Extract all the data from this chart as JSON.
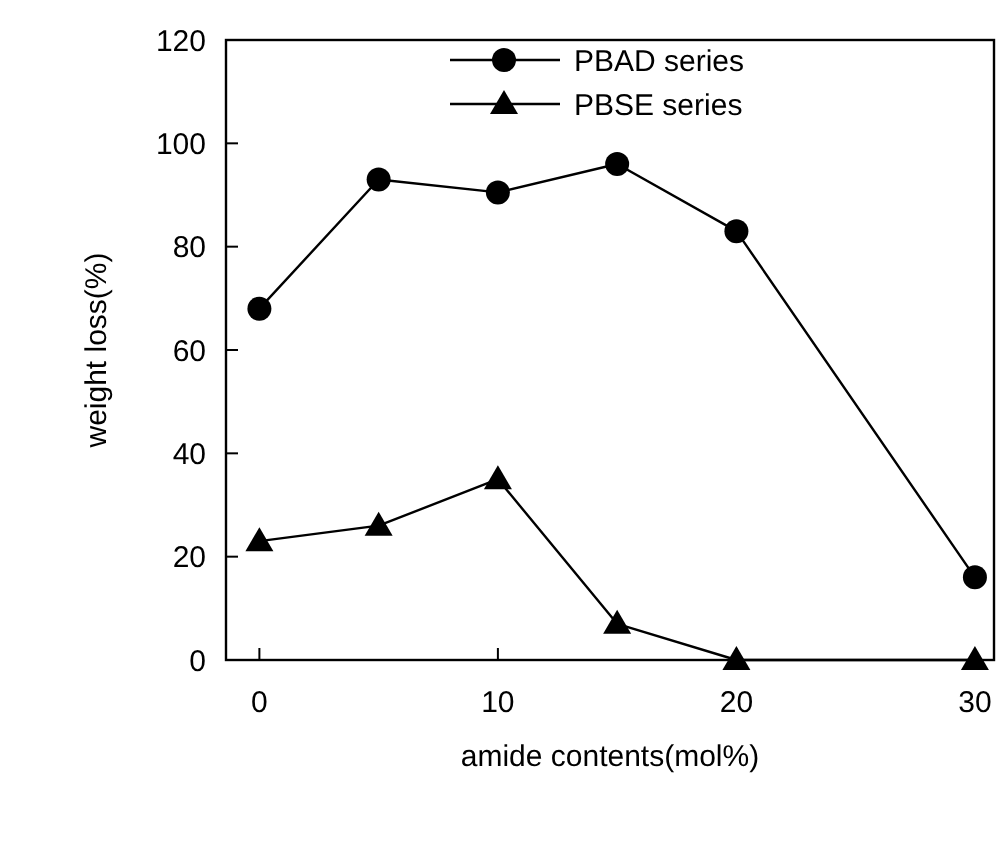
{
  "chart_data": {
    "type": "line",
    "xlabel": "amide contents(mol%)",
    "ylabel": "weight loss(%)",
    "x": [
      0,
      5,
      10,
      15,
      20,
      30
    ],
    "series": [
      {
        "name": "PBAD series",
        "color": "#000000",
        "marker": "circle",
        "values": [
          68,
          93,
          90.5,
          96,
          83,
          16
        ]
      },
      {
        "name": "PBSE series",
        "color": "#000000",
        "marker": "triangle",
        "values": [
          23,
          26,
          35,
          7,
          0,
          0
        ]
      }
    ],
    "xlim": [
      -1.4,
      30.8
    ],
    "xticks": [
      0,
      10,
      20,
      30
    ],
    "ylim": [
      0,
      120
    ],
    "yticks": [
      0,
      20,
      40,
      60,
      80,
      100,
      120
    ],
    "grid": false,
    "legend": "top",
    "line_style": "solid"
  }
}
